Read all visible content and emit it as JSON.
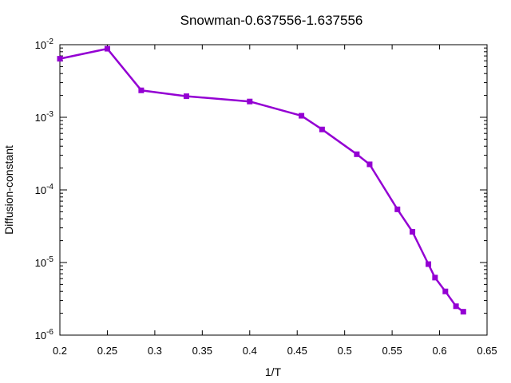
{
  "chart_data": {
    "type": "line",
    "title": "Snowman-0.637556-1.637556",
    "xlabel": "1/T",
    "ylabel": "Diffusion-constant",
    "xlim": [
      0.2,
      0.65
    ],
    "ylim": [
      1e-06,
      0.01
    ],
    "yscale": "log",
    "xticks": [
      0.2,
      0.25,
      0.3,
      0.35,
      0.4,
      0.45,
      0.5,
      0.55,
      0.6,
      0.65
    ],
    "xtick_labels": [
      "0.2",
      "0.25",
      "0.3",
      "0.35",
      "0.4",
      "0.45",
      "0.5",
      "0.55",
      "0.6",
      "0.65"
    ],
    "yticks": [
      1e-06,
      1e-05,
      0.0001,
      0.001,
      0.01
    ],
    "ytick_labels": [
      {
        "base": "10",
        "exp": "-6"
      },
      {
        "base": "10",
        "exp": "-5"
      },
      {
        "base": "10",
        "exp": "-4"
      },
      {
        "base": "10",
        "exp": "-3"
      },
      {
        "base": "10",
        "exp": "-2"
      }
    ],
    "grid": false,
    "series": [
      {
        "color": "#9400d3",
        "marker": "square",
        "x": [
          0.2,
          0.25,
          0.2857,
          0.3333,
          0.4,
          0.4545,
          0.4762,
          0.5128,
          0.5263,
          0.5556,
          0.5714,
          0.5882,
          0.5952,
          0.6061,
          0.6173,
          0.625
        ],
        "y": [
          0.0064,
          0.0088,
          0.00235,
          0.00195,
          0.00165,
          0.00105,
          0.00068,
          0.00031,
          0.000225,
          5.4e-05,
          2.65e-05,
          9.5e-06,
          6.2e-06,
          4e-06,
          2.5e-06,
          2.1e-06
        ]
      }
    ]
  }
}
